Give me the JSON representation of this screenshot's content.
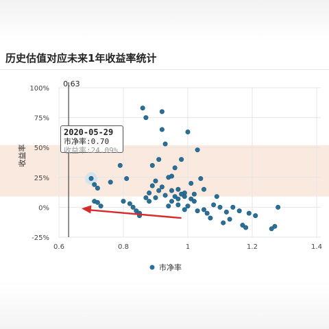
{
  "page": {
    "title": "历史估值对应未来1年收益率统计"
  },
  "tooltip": {
    "date": "2020-05-29",
    "line1": "市净率:0.70",
    "line2": "收益率:24.09%"
  },
  "colors": {
    "point": "#2a6f97",
    "point_stroke": "#1d5578",
    "band": "#f8e2d4",
    "arrow": "#d62b2b",
    "grid": "#e6e6e6"
  },
  "chart_data": {
    "type": "scatter",
    "title": "历史估值对应未来1年收益率统计",
    "xlabel": "",
    "ylabel": "收益率",
    "xlim": [
      0.6,
      1.4
    ],
    "ylim": [
      -25,
      100
    ],
    "x_ticks": [
      "0.6",
      "0.8",
      "1",
      "1.2",
      "1.4"
    ],
    "y_ticks": [
      "-25%",
      "0%",
      "25%",
      "50%",
      "75%",
      "100%"
    ],
    "legend": {
      "position": "bottom-center",
      "label": "市净率"
    },
    "reference_line": {
      "x": 0.63,
      "label": "0.63"
    },
    "highlight_band": {
      "y_from": 9,
      "y_to": 52
    },
    "highlight_point": {
      "x": 0.7,
      "y": 24.09
    },
    "arrow": {
      "from": [
        0.98,
        -9
      ],
      "to": [
        0.67,
        -1
      ]
    },
    "series": [
      {
        "name": "市净率",
        "points": [
          [
            0.7,
            24.09
          ],
          [
            0.71,
            19
          ],
          [
            0.72,
            16
          ],
          [
            0.71,
            5
          ],
          [
            0.72,
            4
          ],
          [
            0.73,
            1
          ],
          [
            0.76,
            21
          ],
          [
            0.79,
            35
          ],
          [
            0.8,
            5
          ],
          [
            0.81,
            24
          ],
          [
            0.82,
            3
          ],
          [
            0.83,
            0
          ],
          [
            0.84,
            -3
          ],
          [
            0.85,
            -5
          ],
          [
            0.86,
            83
          ],
          [
            0.87,
            75
          ],
          [
            0.88,
            12
          ],
          [
            0.88,
            5
          ],
          [
            0.89,
            18
          ],
          [
            0.89,
            35
          ],
          [
            0.9,
            22
          ],
          [
            0.91,
            40
          ],
          [
            0.91,
            14
          ],
          [
            0.92,
            80
          ],
          [
            0.92,
            65
          ],
          [
            0.93,
            53
          ],
          [
            0.93,
            10
          ],
          [
            0.94,
            25
          ],
          [
            0.95,
            14
          ],
          [
            0.95,
            5
          ],
          [
            0.96,
            9
          ],
          [
            0.96,
            33
          ],
          [
            0.97,
            15
          ],
          [
            0.97,
            2
          ],
          [
            0.98,
            40
          ],
          [
            0.99,
            9
          ],
          [
            0.99,
            12
          ],
          [
            1.0,
            63
          ],
          [
            1.01,
            7
          ],
          [
            1.02,
            5
          ],
          [
            1.03,
            48
          ],
          [
            1.04,
            24
          ],
          [
            1.05,
            15
          ],
          [
            1.05,
            -2
          ],
          [
            1.06,
            -5
          ],
          [
            1.07,
            -9
          ],
          [
            1.08,
            2
          ],
          [
            1.09,
            9
          ],
          [
            1.1,
            0
          ],
          [
            1.11,
            -13
          ],
          [
            1.12,
            -4
          ],
          [
            1.13,
            -10
          ],
          [
            1.14,
            0
          ],
          [
            0.9,
            8
          ],
          [
            0.92,
            17
          ],
          [
            0.95,
            26
          ],
          [
            0.98,
            11
          ],
          [
            1.0,
            1
          ],
          [
            1.02,
            11
          ],
          [
            0.87,
            8
          ],
          [
            0.94,
            1
          ],
          [
            1.16,
            -3
          ],
          [
            1.17,
            -15
          ],
          [
            1.18,
            -17
          ],
          [
            1.19,
            -5
          ],
          [
            1.21,
            -7
          ],
          [
            1.26,
            -18
          ],
          [
            1.27,
            -16
          ],
          [
            1.28,
            0
          ],
          [
            0.85,
            -7
          ],
          [
            0.97,
            7
          ],
          [
            1.03,
            -3
          ],
          [
            0.99,
            -2
          ],
          [
            1.01,
            20
          ]
        ]
      }
    ]
  }
}
